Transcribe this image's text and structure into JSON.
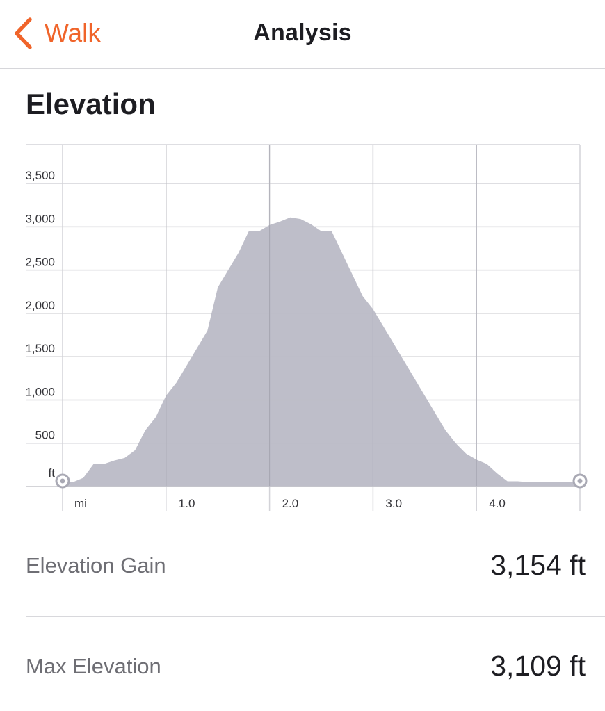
{
  "nav": {
    "back_label": "Walk",
    "title": "Analysis"
  },
  "section": {
    "title": "Elevation"
  },
  "colors": {
    "accent": "#f0642a",
    "area_fill": "#babac6",
    "grid": "#d3d3d8"
  },
  "chart_data": {
    "type": "area",
    "y_unit_label": "ft",
    "x_unit_label": "mi",
    "y_ticks": [
      500,
      1000,
      1500,
      2000,
      2500,
      3000,
      3500
    ],
    "y_tick_labels": [
      "500",
      "1,000",
      "1,500",
      "2,000",
      "2,500",
      "3,000",
      "3,500"
    ],
    "x_ticks": [
      1.0,
      2.0,
      3.0,
      4.0
    ],
    "x_tick_labels": [
      "1.0",
      "2.0",
      "3.0",
      "4.0"
    ],
    "xlim": [
      0,
      5.0
    ],
    "ylim": [
      0,
      3950
    ],
    "grid": true,
    "series": [
      {
        "x": [
          0,
          0.1,
          0.2,
          0.3,
          0.4,
          0.5,
          0.6,
          0.7,
          0.8,
          0.9,
          1.0,
          1.1,
          1.2,
          1.3,
          1.4,
          1.5,
          1.6,
          1.7,
          1.8,
          1.9,
          2.0,
          2.1,
          2.2,
          2.3,
          2.4,
          2.5,
          2.6,
          2.7,
          2.8,
          2.9,
          3.0,
          3.1,
          3.2,
          3.3,
          3.4,
          3.5,
          3.6,
          3.7,
          3.8,
          3.9,
          4.0,
          4.1,
          4.2,
          4.3,
          4.4,
          4.5,
          4.6,
          4.7,
          4.8,
          4.9,
          5.0
        ],
        "y": [
          50,
          50,
          100,
          260,
          260,
          300,
          330,
          420,
          650,
          800,
          1050,
          1200,
          1400,
          1600,
          1800,
          2300,
          2500,
          2700,
          2950,
          2950,
          3020,
          3060,
          3109,
          3090,
          3030,
          2950,
          2950,
          2700,
          2450,
          2200,
          2050,
          1850,
          1650,
          1450,
          1250,
          1050,
          850,
          650,
          500,
          380,
          310,
          260,
          150,
          60,
          60,
          50,
          50,
          50,
          50,
          50,
          50
        ]
      }
    ]
  },
  "stats": {
    "gain_label": "Elevation Gain",
    "gain_value": "3,154 ft",
    "max_label": "Max Elevation",
    "max_value": "3,109 ft"
  }
}
